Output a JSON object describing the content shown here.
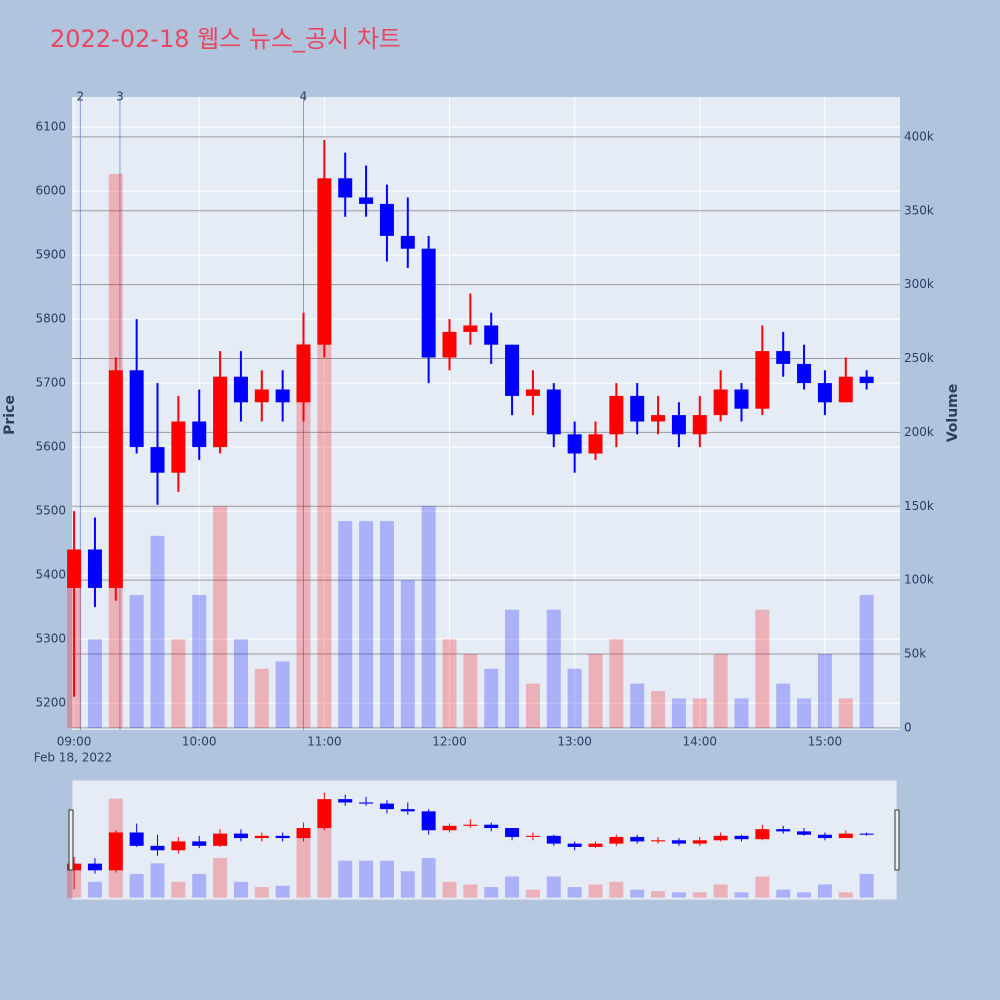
{
  "chart_data": {
    "type": "candlestick",
    "title": "2022-02-18 웹스 뉴스_공시 차트",
    "title_color": "#e8475f",
    "x_date": "Feb 18, 2022",
    "y_label": "Price",
    "y2_label": "Volume",
    "rising_color": "#ff0000",
    "falling_color": "#0000ff",
    "x": [
      "09:00",
      "09:10",
      "09:20",
      "09:30",
      "09:40",
      "09:50",
      "10:00",
      "10:10",
      "10:20",
      "10:30",
      "10:40",
      "10:50",
      "11:00",
      "11:10",
      "11:20",
      "11:30",
      "11:40",
      "11:50",
      "12:00",
      "12:10",
      "12:20",
      "12:30",
      "12:40",
      "12:50",
      "13:00",
      "13:10",
      "13:20",
      "13:30",
      "13:40",
      "13:50",
      "14:00",
      "14:10",
      "14:20",
      "14:30",
      "14:40",
      "14:50",
      "15:00",
      "15:10",
      "15:20"
    ],
    "open": [
      5380,
      5440,
      5380,
      5720,
      5600,
      5560,
      5640,
      5600,
      5710,
      5670,
      5690,
      5670,
      5760,
      6020,
      5990,
      5980,
      5930,
      5910,
      5740,
      5780,
      5790,
      5760,
      5680,
      5690,
      5620,
      5590,
      5620,
      5680,
      5640,
      5650,
      5620,
      5650,
      5690,
      5660,
      5750,
      5730,
      5700,
      5670,
      5710
    ],
    "high": [
      5500,
      5490,
      5740,
      5800,
      5700,
      5680,
      5690,
      5750,
      5750,
      5720,
      5720,
      5810,
      6080,
      6060,
      6040,
      6010,
      5990,
      5930,
      5800,
      5840,
      5810,
      5760,
      5720,
      5700,
      5640,
      5640,
      5700,
      5700,
      5680,
      5670,
      5680,
      5720,
      5700,
      5790,
      5780,
      5760,
      5720,
      5740,
      5720
    ],
    "low": [
      5210,
      5350,
      5360,
      5590,
      5510,
      5530,
      5580,
      5590,
      5640,
      5640,
      5640,
      5640,
      5740,
      5960,
      5960,
      5890,
      5880,
      5700,
      5720,
      5760,
      5730,
      5650,
      5650,
      5600,
      5560,
      5580,
      5600,
      5620,
      5620,
      5600,
      5600,
      5640,
      5640,
      5650,
      5710,
      5690,
      5650,
      5670,
      5690
    ],
    "close": [
      5440,
      5380,
      5720,
      5600,
      5560,
      5640,
      5600,
      5710,
      5670,
      5690,
      5670,
      5760,
      6020,
      5990,
      5980,
      5930,
      5910,
      5740,
      5780,
      5790,
      5760,
      5680,
      5690,
      5620,
      5590,
      5620,
      5680,
      5640,
      5650,
      5620,
      5650,
      5690,
      5660,
      5750,
      5730,
      5700,
      5670,
      5710,
      5700
    ],
    "volume": [
      120000,
      60000,
      375000,
      90000,
      130000,
      60000,
      90000,
      150000,
      60000,
      40000,
      45000,
      260000,
      300000,
      140000,
      140000,
      140000,
      100000,
      150000,
      60000,
      50000,
      40000,
      80000,
      30000,
      80000,
      40000,
      50000,
      60000,
      30000,
      25000,
      20000,
      20000,
      50000,
      20000,
      80000,
      30000,
      20000,
      50000,
      20000,
      90000
    ],
    "xlim": [
      "08:59",
      "15:36"
    ],
    "xticks": [
      "09:00",
      "10:00",
      "11:00",
      "12:00",
      "13:00",
      "14:00",
      "15:00"
    ],
    "ylim": [
      5158,
      6147
    ],
    "yticks": [
      5200,
      5300,
      5400,
      5500,
      5600,
      5700,
      5800,
      5900,
      6000,
      6100
    ],
    "y2lim": [
      -1400,
      427000
    ],
    "y2ticks": [
      0,
      {
        "value": 50000,
        "label": "50k"
      },
      {
        "value": 100000,
        "label": "100k"
      },
      {
        "value": 150000,
        "label": "150k"
      },
      {
        "value": 200000,
        "label": "200k"
      },
      {
        "value": 250000,
        "label": "250k"
      },
      {
        "value": 300000,
        "label": "300k"
      },
      {
        "value": 350000,
        "label": "350k"
      },
      {
        "value": 400000,
        "label": "400k"
      }
    ],
    "annotations": [
      {
        "x": "09:03",
        "text": "2"
      },
      {
        "x": "09:22",
        "text": "3"
      },
      {
        "x": "10:50",
        "text": "4"
      }
    ],
    "grid": true
  }
}
